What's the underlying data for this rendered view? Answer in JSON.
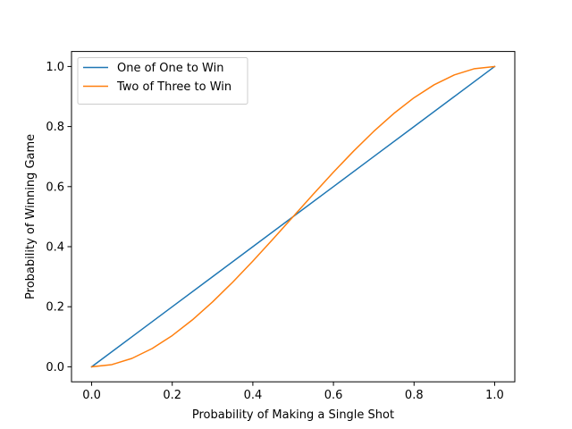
{
  "chart_data": {
    "type": "line",
    "title": "",
    "xlabel": "Probability of Making a Single Shot",
    "ylabel": "Probability of Winning Game",
    "xlim": [
      -0.05,
      1.05
    ],
    "ylim": [
      -0.05,
      1.05
    ],
    "xticks": [
      "0.0",
      "0.2",
      "0.4",
      "0.6",
      "0.8",
      "1.0"
    ],
    "yticks": [
      "0.0",
      "0.2",
      "0.4",
      "0.6",
      "0.8",
      "1.0"
    ],
    "grid": false,
    "legend_position": "top-left",
    "series": [
      {
        "name": "One of One to Win",
        "color": "#1f77b4",
        "x": [
          0.0,
          0.1,
          0.2,
          0.3,
          0.4,
          0.5,
          0.6,
          0.7,
          0.8,
          0.9,
          1.0
        ],
        "y": [
          0.0,
          0.1,
          0.2,
          0.3,
          0.4,
          0.5,
          0.6,
          0.7,
          0.8,
          0.9,
          1.0
        ]
      },
      {
        "name": "Two of Three to Win",
        "color": "#ff7f0e",
        "x": [
          0.0,
          0.05,
          0.1,
          0.15,
          0.2,
          0.25,
          0.3,
          0.35,
          0.4,
          0.45,
          0.5,
          0.55,
          0.6,
          0.65,
          0.7,
          0.75,
          0.8,
          0.85,
          0.9,
          0.95,
          1.0
        ],
        "y": [
          0.0,
          0.00725,
          0.028,
          0.06075,
          0.104,
          0.15625,
          0.216,
          0.28175,
          0.352,
          0.42525,
          0.5,
          0.57475,
          0.648,
          0.71825,
          0.784,
          0.84375,
          0.896,
          0.93925,
          0.972,
          0.99275,
          1.0
        ]
      }
    ]
  }
}
